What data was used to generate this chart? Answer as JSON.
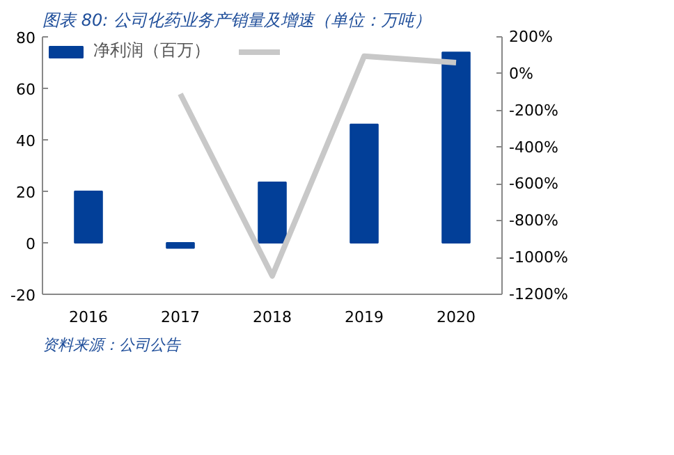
{
  "chart_data": {
    "type": "bar",
    "title": "图表 80: 公司化药业务产销量及增速（单位：万吨）",
    "categories": [
      "2016",
      "2017",
      "2018",
      "2019",
      "2020"
    ],
    "series": [
      {
        "name": "净利润（百万）",
        "color": "#023f98",
        "values": [
          20,
          -2,
          23.5,
          46,
          74
        ]
      },
      {
        "type": "line",
        "axis": "y2",
        "color": "#c8c8c8",
        "values": [
          null,
          -110,
          -1100,
          95,
          60
        ]
      }
    ],
    "ylim": [
      -20,
      80
    ],
    "yticks": [
      -20,
      0,
      20,
      40,
      60,
      80
    ],
    "y2lim": [
      -1200,
      200
    ],
    "y2ticks": [
      {
        "value": -1200,
        "label": "-1200%"
      },
      {
        "value": -1000,
        "label": "-1000%"
      },
      {
        "value": -800,
        "label": "-800%"
      },
      {
        "value": -600,
        "label": "-600%"
      },
      {
        "value": -400,
        "label": "-400%"
      },
      {
        "value": -200,
        "label": "-200%"
      },
      {
        "value": 0,
        "label": "0%"
      },
      {
        "value": 200,
        "label": "200%"
      }
    ],
    "grid": false,
    "legend": "top",
    "annotations": [
      "资料来源：公司公告"
    ]
  }
}
